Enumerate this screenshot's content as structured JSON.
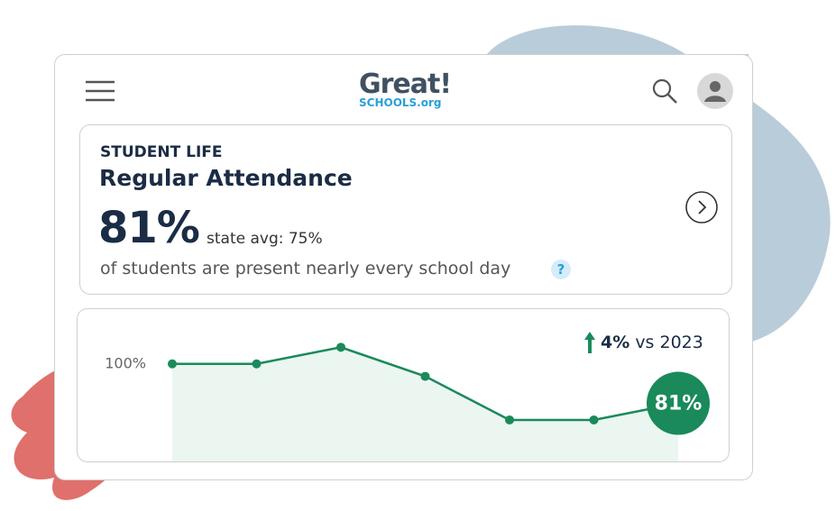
{
  "header": {
    "logo_top": "Great!",
    "logo_bottom": "SCHOOLS.org"
  },
  "card": {
    "eyebrow": "STUDENT LIFE",
    "title": "Regular Attendance",
    "big_value": "81%",
    "state_avg": "state avg: 75%",
    "description": "of students are present nearly every school day",
    "help": "?"
  },
  "trend": {
    "change": "4%",
    "comparison": "vs 2023"
  },
  "chart_data": {
    "type": "line",
    "categories": [
      null,
      null,
      null,
      null,
      null,
      null,
      null
    ],
    "values": [
      100,
      100,
      108,
      94,
      73,
      73,
      81
    ],
    "value_labels": [
      null,
      null,
      null,
      null,
      null,
      null,
      "81%"
    ],
    "color": "#1a8a5a",
    "ylim": [
      53,
      119
    ],
    "yticks": [
      {
        "value": 100,
        "label": "100%"
      }
    ]
  }
}
